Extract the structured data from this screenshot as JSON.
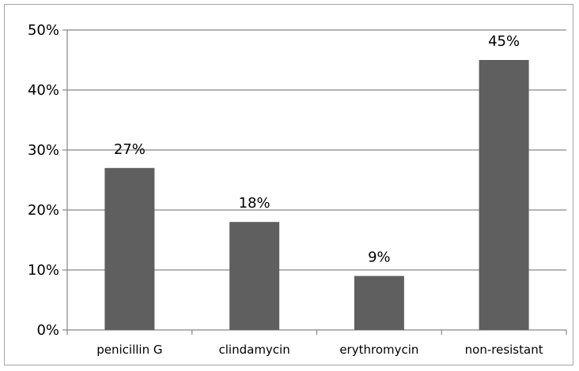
{
  "chart_data": {
    "type": "bar",
    "categories": [
      "penicillin G",
      "clindamycin",
      "erythromycin",
      "non-resistant"
    ],
    "values": [
      27,
      18,
      9,
      45
    ],
    "data_labels": [
      "27%",
      "18%",
      "9%",
      "45%"
    ],
    "title": "",
    "xlabel": "",
    "ylabel": "",
    "ylim": [
      0,
      50
    ],
    "yticks": [
      0,
      10,
      20,
      30,
      40,
      50
    ],
    "ytick_labels": [
      "0%",
      "10%",
      "20%",
      "30%",
      "40%",
      "50%"
    ],
    "grid": true,
    "legend": "none",
    "bar_color": "#5f5f5f",
    "grid_color": "#868686"
  }
}
